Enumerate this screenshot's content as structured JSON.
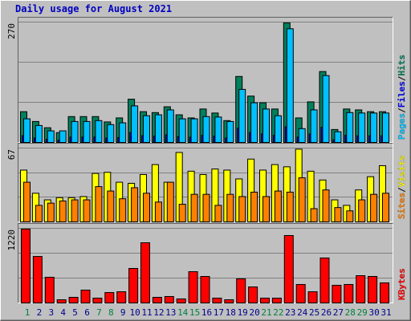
{
  "chart_data": {
    "type": "bar",
    "title": "Daily usage for August 2021",
    "categories": [
      1,
      2,
      3,
      4,
      5,
      6,
      7,
      8,
      9,
      10,
      11,
      12,
      13,
      14,
      15,
      16,
      17,
      18,
      19,
      20,
      21,
      22,
      23,
      24,
      25,
      26,
      27,
      28,
      29,
      30,
      31
    ],
    "category_colors": [
      "#008040",
      "#00008b",
      "#00008b",
      "#00008b",
      "#00008b",
      "#00008b",
      "#008040",
      "#008040",
      "#00008b",
      "#00008b",
      "#00008b",
      "#00008b",
      "#00008b",
      "#008040",
      "#008040",
      "#00008b",
      "#00008b",
      "#00008b",
      "#00008b",
      "#00008b",
      "#008040",
      "#008040",
      "#00008b",
      "#00008b",
      "#00008b",
      "#00008b",
      "#00008b",
      "#008040",
      "#008040",
      "#00008b",
      "#00008b"
    ],
    "legend_separator": "/",
    "panels": [
      {
        "ylim": [
          0,
          270
        ],
        "yticks": [
          270
        ],
        "series": [
          {
            "name": "Hits",
            "color": "#00805c",
            "values": [
              69,
              47,
              33,
              22,
              58,
              58,
              58,
              46,
              55,
              97,
              69,
              67,
              80,
              62,
              55,
              75,
              66,
              49,
              148,
              104,
              89,
              75,
              268,
              55,
              91,
              159,
              29,
              75,
              73,
              69,
              69
            ]
          },
          {
            "name": "Files",
            "color": "#0000ff",
            "values": [
              15,
              10,
              7,
              5,
              12,
              12,
              12,
              10,
              11,
              22,
              15,
              14,
              17,
              13,
              12,
              16,
              14,
              10,
              32,
              22,
              19,
              16,
              35,
              12,
              19,
              34,
              6,
              16,
              15,
              15,
              15
            ]
          },
          {
            "name": "Pages",
            "color": "#00c0ff",
            "values": [
              53,
              38,
              26,
              26,
              47,
              47,
              49,
              40,
              44,
              82,
              60,
              62,
              73,
              53,
              53,
              58,
              57,
              47,
              119,
              89,
              75,
              60,
              255,
              31,
              73,
              150,
              24,
              67,
              66,
              66,
              66
            ]
          }
        ]
      },
      {
        "ylim": [
          0,
          67
        ],
        "yticks": [
          67
        ],
        "series": [
          {
            "name": "Visits",
            "color": "#ffff00",
            "values": [
              47,
              26,
              20,
              22,
              22,
              23,
              44,
              45,
              36,
              35,
              43,
              52,
              36,
              63,
              46,
              43,
              48,
              47,
              39,
              57,
              47,
              52,
              50,
              66,
              46,
              38,
              20,
              15,
              29,
              41,
              51
            ]
          },
          {
            "name": "Sites",
            "color": "#ff8000",
            "values": [
              36,
              15,
              17,
              19,
              20,
              20,
              32,
              28,
              21,
              31,
              26,
              18,
              36,
              16,
              25,
              25,
              15,
              25,
              23,
              27,
              23,
              28,
              27,
              40,
              12,
              29,
              13,
              10,
              20,
              25,
              26
            ]
          }
        ]
      },
      {
        "ylim": [
          0,
          1220
        ],
        "yticks": [
          1220
        ],
        "series": [
          {
            "name": "KBytes",
            "color": "#ff0000",
            "values": [
              1207,
              760,
              420,
              52,
              92,
              210,
              79,
              170,
              183,
              564,
              984,
              92,
              105,
              66,
              511,
              433,
              79,
              52,
              394,
              262,
              79,
              79,
              1102,
              302,
              183,
              735,
              289,
              302,
              446,
              433,
              328
            ]
          }
        ]
      }
    ]
  }
}
